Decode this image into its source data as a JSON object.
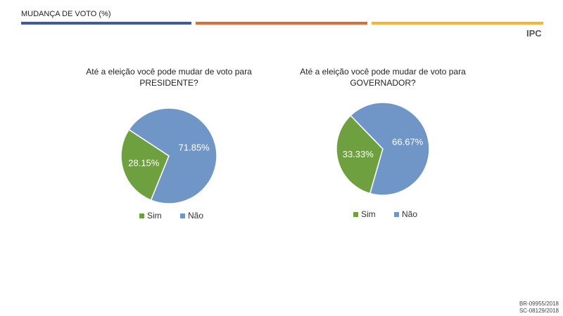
{
  "header": {
    "title": "MUDANÇA DE VOTO (%)",
    "logo": "IPC"
  },
  "chart_data": [
    {
      "type": "pie",
      "title": "Até a eleição você pode mudar de voto para PRESIDENTE?",
      "categories": [
        "Sim",
        "Não"
      ],
      "values": [
        28.15,
        71.85
      ],
      "value_labels": [
        "28.15%",
        "71.85%"
      ],
      "colors": [
        "#6fa040",
        "#7096c8"
      ],
      "legend": "bottom"
    },
    {
      "type": "pie",
      "title": "Até a eleição você pode mudar de voto para GOVERNADOR?",
      "categories": [
        "Sim",
        "Não"
      ],
      "values": [
        33.33,
        66.67
      ],
      "value_labels": [
        "33.33%",
        "66.67%"
      ],
      "colors": [
        "#6fa040",
        "#7096c8"
      ],
      "legend": "bottom"
    }
  ],
  "footer": {
    "codes": [
      "BR-09955/2018",
      "SC-08129/2018"
    ]
  }
}
